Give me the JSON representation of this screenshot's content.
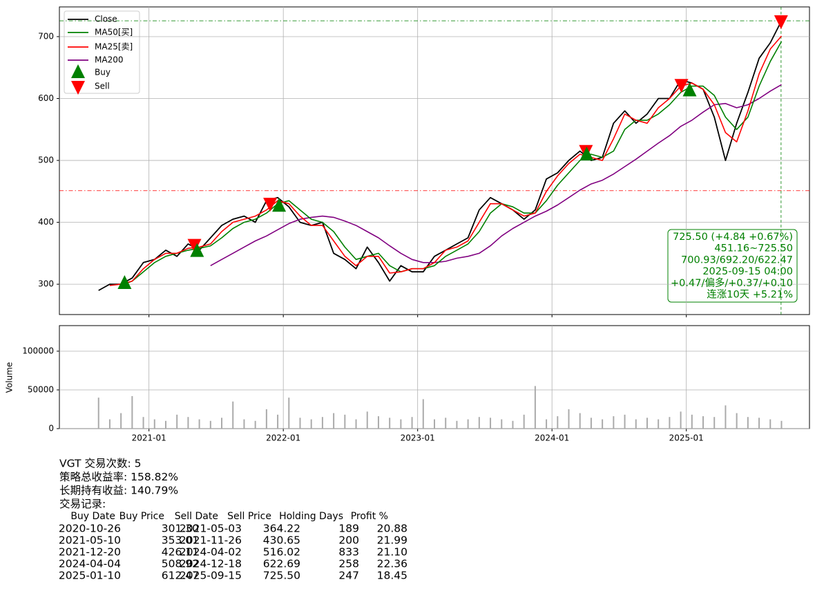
{
  "chart_data": {
    "type": "line",
    "x": [
      "2020-08",
      "2020-09",
      "2020-10",
      "2020-11",
      "2020-12",
      "2021-01",
      "2021-02",
      "2021-03",
      "2021-04",
      "2021-05",
      "2021-06",
      "2021-07",
      "2021-08",
      "2021-09",
      "2021-10",
      "2021-11",
      "2021-12",
      "2022-01",
      "2022-02",
      "2022-03",
      "2022-04",
      "2022-05",
      "2022-06",
      "2022-07",
      "2022-08",
      "2022-09",
      "2022-10",
      "2022-11",
      "2022-12",
      "2023-01",
      "2023-02",
      "2023-03",
      "2023-04",
      "2023-05",
      "2023-06",
      "2023-07",
      "2023-08",
      "2023-09",
      "2023-10",
      "2023-11",
      "2023-12",
      "2024-01",
      "2024-02",
      "2024-03",
      "2024-04",
      "2024-05",
      "2024-06",
      "2024-07",
      "2024-08",
      "2024-09",
      "2024-10",
      "2024-11",
      "2024-12",
      "2025-01",
      "2025-02",
      "2025-03",
      "2025-04",
      "2025-05",
      "2025-06",
      "2025-07",
      "2025-08",
      "2025-09"
    ],
    "xlim": [
      "2020-05",
      "2025-12"
    ],
    "xticks": [
      "2021-01",
      "2022-01",
      "2023-01",
      "2024-01",
      "2025-01"
    ],
    "ylim": [
      251,
      748
    ],
    "yticks": [
      300,
      400,
      500,
      600,
      700
    ],
    "grid": true,
    "legend": "upper left",
    "series": [
      {
        "name": "Close",
        "color": "black",
        "values": [
          290,
          300,
          300,
          310,
          335,
          340,
          355,
          345,
          365,
          355,
          375,
          395,
          405,
          410,
          400,
          435,
          440,
          425,
          400,
          395,
          400,
          350,
          340,
          325,
          360,
          335,
          305,
          330,
          320,
          320,
          345,
          355,
          365,
          375,
          420,
          440,
          430,
          420,
          405,
          420,
          470,
          480,
          500,
          515,
          500,
          505,
          560,
          580,
          560,
          575,
          600,
          600,
          630,
          625,
          615,
          570,
          500,
          560,
          610,
          665,
          690,
          725.5
        ]
      },
      {
        "name": "MA50[买]",
        "color": "green",
        "values": [
          null,
          null,
          298,
          305,
          320,
          335,
          345,
          350,
          355,
          358,
          362,
          375,
          390,
          400,
          405,
          415,
          430,
          435,
          420,
          405,
          400,
          385,
          360,
          340,
          345,
          350,
          330,
          320,
          325,
          325,
          330,
          345,
          355,
          365,
          385,
          415,
          430,
          425,
          415,
          415,
          435,
          460,
          480,
          500,
          510,
          505,
          515,
          550,
          565,
          565,
          575,
          590,
          610,
          620,
          620,
          605,
          570,
          550,
          570,
          620,
          660,
          692.2
        ]
      },
      {
        "name": "MA25[卖]",
        "color": "red",
        "values": [
          null,
          298,
          300,
          305,
          325,
          340,
          350,
          350,
          358,
          360,
          365,
          385,
          400,
          405,
          410,
          420,
          435,
          430,
          410,
          395,
          395,
          370,
          345,
          330,
          345,
          345,
          318,
          320,
          325,
          325,
          335,
          355,
          360,
          370,
          400,
          430,
          430,
          420,
          410,
          415,
          450,
          475,
          495,
          510,
          505,
          500,
          535,
          575,
          565,
          560,
          585,
          600,
          620,
          625,
          615,
          590,
          545,
          530,
          580,
          640,
          680,
          700.93
        ]
      },
      {
        "name": "MA200",
        "color": "purple",
        "values": [
          null,
          null,
          null,
          null,
          null,
          null,
          null,
          null,
          null,
          null,
          330,
          340,
          350,
          360,
          370,
          378,
          388,
          398,
          405,
          408,
          410,
          408,
          402,
          395,
          385,
          375,
          362,
          350,
          340,
          335,
          335,
          337,
          342,
          345,
          350,
          362,
          378,
          390,
          400,
          410,
          418,
          428,
          440,
          452,
          462,
          468,
          478,
          490,
          502,
          515,
          528,
          540,
          555,
          565,
          578,
          590,
          592,
          585,
          590,
          600,
          612,
          622.47
        ]
      }
    ],
    "markers": [
      {
        "name": "Buy",
        "color": "green",
        "shape": "triangle-up"
      },
      {
        "name": "Sell",
        "color": "red",
        "shape": "triangle-down"
      }
    ],
    "hlines": [
      {
        "value": 725.5,
        "color": "green"
      },
      {
        "value": 451.16,
        "color": "red"
      }
    ],
    "annotation": [
      "725.50 (+4.84 +0.67%)",
      "451.16~725.50",
      "700.93/692.20/622.47",
      "2025-09-15 04:00",
      "+0.47/偏多/+0.37/+0.10",
      "连涨10天 +5.21%"
    ],
    "volume": {
      "type": "bar",
      "ylabel": "Volume",
      "color": "#aaaaaa",
      "ylim": [
        0,
        133000
      ],
      "yticks": [
        0,
        50000,
        100000
      ],
      "values": [
        40000,
        12000,
        20000,
        42000,
        15000,
        12000,
        10000,
        18000,
        15000,
        12000,
        10000,
        14000,
        35000,
        12000,
        10000,
        25000,
        18000,
        40000,
        14000,
        12000,
        15000,
        20000,
        18000,
        12000,
        22000,
        16000,
        14000,
        12000,
        15000,
        38000,
        12000,
        14000,
        10000,
        12000,
        15000,
        14000,
        12000,
        10000,
        18000,
        55000,
        12000,
        16000,
        25000,
        20000,
        14000,
        12000,
        16000,
        18000,
        12000,
        14000,
        12000,
        15000,
        22000,
        18000,
        16000,
        15000,
        30000,
        20000,
        15000,
        14000,
        12000,
        10000
      ]
    }
  },
  "summary": [
    "VGT 交易次数: 5",
    "策略总收益率: 158.82%",
    "长期持有收益: 140.79%",
    "交易记录:"
  ],
  "table": {
    "columns": [
      "Buy Date",
      "Buy Price",
      "Sell Date",
      "Sell Price",
      "Holding Days",
      "Profit %"
    ],
    "rows": [
      [
        "2020-10-26",
        "301.30",
        "2021-05-03",
        "364.22",
        "189",
        "20.88"
      ],
      [
        "2021-05-10",
        "353.01",
        "2021-11-26",
        "430.65",
        "200",
        "21.99"
      ],
      [
        "2021-12-20",
        "426.11",
        "2024-04-02",
        "516.02",
        "833",
        "21.10"
      ],
      [
        "2024-04-04",
        "508.92",
        "2024-12-18",
        "622.69",
        "258",
        "22.36"
      ],
      [
        "2025-01-10",
        "612.47",
        "2025-09-15",
        "725.50",
        "247",
        "18.45"
      ]
    ]
  }
}
